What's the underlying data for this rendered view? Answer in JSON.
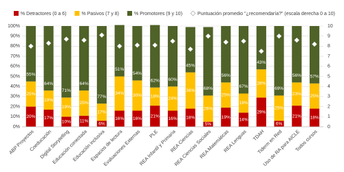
{
  "chart_data": {
    "type": "stacked_bar",
    "categories": [
      "ABP Proyectos",
      "Coeducación",
      "Digital Storytelling",
      "Educación conectada",
      "Educación inclusiva",
      "Espacios de lectura",
      "Evaluaciones Externas",
      "PLE",
      "REA Infantil y Primaria",
      "REA Ciencias",
      "REA Ciencias Sociales",
      "REA Matemáticas",
      "REA Lenguas",
      "TDAH",
      "Tiderm en Red",
      "Uso de RA para AICLE",
      "Todos cursos"
    ],
    "series": [
      {
        "name": "% Detractores (0 a 6)",
        "color": "#c00000",
        "values": [
          20,
          17,
          10,
          11,
          6,
          16,
          16,
          21,
          16,
          18,
          5,
          19,
          14,
          29,
          6,
          21,
          18
        ],
        "value_labels": [
          "20%",
          "17%",
          "10%",
          "11%",
          "6%",
          "16%",
          "16%",
          "21%",
          "16%",
          "18%",
          "5%",
          "19%",
          "14%",
          "29%",
          "6%",
          "21%",
          "18%"
        ]
      },
      {
        "name": "% Pasivos (7 y 8)",
        "color": "#ffc000",
        "values": [
          25,
          19,
          19,
          25,
          17,
          34,
          30,
          18,
          24,
          36,
          26,
          25,
          19,
          28,
          25,
          23,
          25
        ],
        "value_labels": [
          "25%",
          "19%",
          "19%",
          "25%",
          "17%",
          "34%",
          "30%",
          "18%",
          "24%",
          "36%",
          "26%",
          "25%",
          "19%",
          "28%",
          "25%",
          "23%",
          "25%"
        ]
      },
      {
        "name": "% Promotores (9 y 10)",
        "color": "#4f6228",
        "values": [
          55,
          64,
          71,
          64,
          77,
          51,
          54,
          62,
          60,
          45,
          68,
          56,
          67,
          43,
          69,
          56,
          57
        ],
        "value_labels": [
          "55%",
          "64%",
          "71%",
          "64%",
          "77%",
          "51%",
          "54%",
          "62%",
          "60%",
          "45%",
          "68%",
          "56%",
          "67%",
          "43%",
          "69%",
          "56%",
          "57%"
        ]
      },
      {
        "name": "Puntuación promedio \"¿recomendaría?\" (escala derecha 0 a 10)",
        "color": "#ffffff",
        "axis": "y2",
        "marker": "diamond",
        "values": [
          8.0,
          8.3,
          8.7,
          8.6,
          9.1,
          8.0,
          8.1,
          8.1,
          8.5,
          7.7,
          9.0,
          8.4,
          8.5,
          7.5,
          9.0,
          8.6,
          8.2
        ]
      }
    ],
    "ylim": [
      0,
      100
    ],
    "yticks": [
      {
        "value": 0,
        "label": "0%"
      },
      {
        "value": 10,
        "label": "10%"
      },
      {
        "value": 20,
        "label": "20%"
      },
      {
        "value": 30,
        "label": "30%"
      },
      {
        "value": 40,
        "label": "40%"
      },
      {
        "value": 50,
        "label": "50%"
      },
      {
        "value": 60,
        "label": "60%"
      },
      {
        "value": 70,
        "label": "70%"
      },
      {
        "value": 80,
        "label": "80%"
      },
      {
        "value": 90,
        "label": "90%"
      },
      {
        "value": 100,
        "label": "100%"
      }
    ],
    "y2lim": [
      0,
      10
    ],
    "y2ticks": [
      0,
      1,
      2,
      3,
      4,
      5,
      6,
      7,
      8,
      9,
      10
    ],
    "grid": true,
    "legend": "top"
  }
}
